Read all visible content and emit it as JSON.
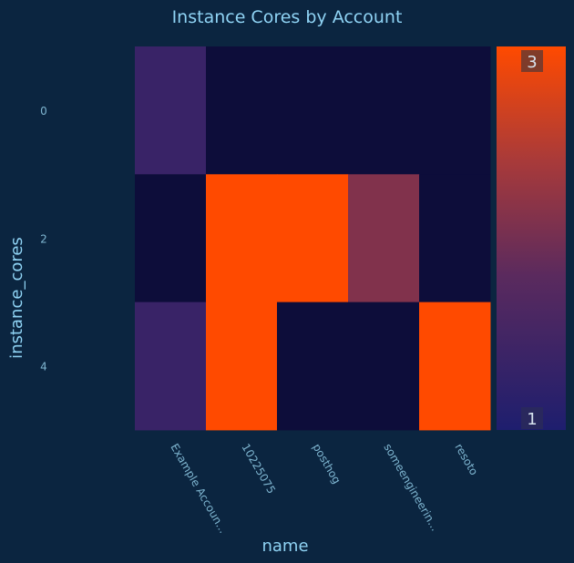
{
  "chart_data": {
    "type": "heatmap",
    "title": "Instance Cores by Account",
    "xlabel": "name",
    "ylabel": "instance_cores",
    "x_categories": [
      "Example Accoun...",
      "10225075",
      "posthog",
      "someengineerin...",
      "resoto"
    ],
    "y_tick_labels": [
      "0",
      "2",
      "4"
    ],
    "rows": [
      {
        "y": "0",
        "values": [
          1.3,
          1,
          1,
          1,
          1
        ]
      },
      {
        "y": "2",
        "values": [
          1,
          3,
          3,
          2,
          1
        ]
      },
      {
        "y": "4",
        "values": [
          1.3,
          3,
          1,
          1,
          3
        ]
      }
    ],
    "colorbar": {
      "min": 1,
      "max": 3,
      "min_label": "1",
      "max_label": "3",
      "colors": [
        "#1e1e6e",
        "#5a2a5e",
        "#a83a3a",
        "#ff4a00"
      ]
    },
    "color_low": "#0d0d3a",
    "color_high": "#ff4a00",
    "background": "#0b2540"
  }
}
